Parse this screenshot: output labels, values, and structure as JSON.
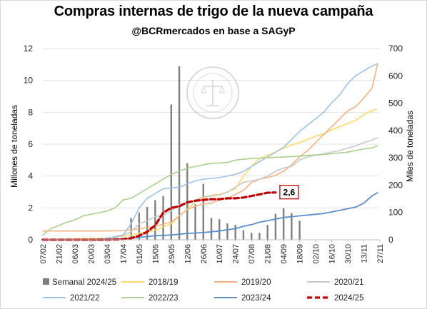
{
  "chart_data": {
    "type": "line",
    "title": "Compras internas de trigo de la nueva campaña",
    "subtitle": "@BCRmercados en base a SAGyP",
    "ylabel_left": "Millones de toneladas",
    "ylabel_right": "Miles de toneladas",
    "ylim_left": [
      0,
      12
    ],
    "ylim_right": [
      0,
      700
    ],
    "yticks_left": [
      "0",
      "2",
      "4",
      "6",
      "8",
      "10",
      "12"
    ],
    "yticks_right": [
      "0",
      "100",
      "200",
      "300",
      "400",
      "500",
      "600",
      "700"
    ],
    "x_tick_labels": [
      "07/02",
      "21/02",
      "06/03",
      "20/03",
      "03/04",
      "17/04",
      "01/05",
      "15/05",
      "29/05",
      "12/06",
      "26/06",
      "10/07",
      "24/07",
      "07/08",
      "21/08",
      "04/09",
      "18/09",
      "02/10",
      "16/10",
      "30/10",
      "13/11",
      "27/11"
    ],
    "x_unit": "weeks since 07/02",
    "x_max": 42,
    "grid": "horizontal",
    "legend_position": "bottom",
    "annotation": {
      "text": "2,6",
      "series": "2024/25"
    },
    "bar_series": {
      "name": "Semanal 2024/25",
      "color": "#7f7f7f",
      "axis": "right",
      "x": [
        11,
        12,
        13,
        14,
        15,
        16,
        17,
        18,
        19,
        20,
        21,
        22,
        23,
        24,
        25,
        26,
        27,
        28,
        29,
        30,
        31,
        32
      ],
      "values": [
        80,
        100,
        120,
        145,
        160,
        495,
        635,
        280,
        130,
        205,
        80,
        75,
        60,
        55,
        35,
        25,
        25,
        55,
        95,
        115,
        98,
        70
      ]
    },
    "series": [
      {
        "name": "2018/19",
        "color": "#ffd966",
        "width": 1.6,
        "dash": "",
        "points": [
          [
            0,
            0
          ],
          [
            4,
            0.05
          ],
          [
            8,
            0.1
          ],
          [
            11,
            0.3
          ],
          [
            14,
            0.6
          ],
          [
            16,
            1.0
          ],
          [
            17,
            1.5
          ],
          [
            18,
            1.9
          ],
          [
            19,
            2.4
          ],
          [
            20,
            2.6
          ],
          [
            21,
            2.8
          ],
          [
            22,
            2.85
          ],
          [
            23,
            3.0
          ],
          [
            24,
            3.2
          ],
          [
            25,
            4.0
          ],
          [
            26,
            4.6
          ],
          [
            27,
            5.1
          ],
          [
            28,
            5.3
          ],
          [
            29,
            5.5
          ],
          [
            30,
            5.75
          ],
          [
            31,
            5.95
          ],
          [
            32,
            6.1
          ],
          [
            33,
            6.3
          ],
          [
            34,
            6.5
          ],
          [
            35,
            6.65
          ],
          [
            36,
            6.9
          ],
          [
            37,
            7.1
          ],
          [
            38,
            7.3
          ],
          [
            39,
            7.5
          ],
          [
            40,
            7.85
          ],
          [
            41,
            8.1
          ],
          [
            41.6,
            8.2
          ]
        ]
      },
      {
        "name": "2019/20",
        "color": "#f4b183",
        "width": 1.6,
        "dash": "",
        "points": [
          [
            0,
            0.55
          ],
          [
            4,
            0.55
          ],
          [
            8,
            0.55
          ],
          [
            10,
            0.58
          ],
          [
            12,
            0.7
          ],
          [
            14,
            0.85
          ],
          [
            16,
            1.1
          ],
          [
            17,
            1.5
          ],
          [
            18,
            1.9
          ],
          [
            19,
            2.1
          ],
          [
            20,
            2.25
          ],
          [
            21,
            2.3
          ],
          [
            22,
            2.5
          ],
          [
            23,
            2.6
          ],
          [
            24,
            2.85
          ],
          [
            25,
            3.1
          ],
          [
            26,
            3.6
          ],
          [
            27,
            3.8
          ],
          [
            28,
            3.9
          ],
          [
            29,
            4.05
          ],
          [
            30,
            4.3
          ],
          [
            31,
            4.7
          ],
          [
            32,
            5.2
          ],
          [
            33,
            5.6
          ],
          [
            34,
            6.1
          ],
          [
            35,
            6.6
          ],
          [
            36,
            7.1
          ],
          [
            37,
            7.6
          ],
          [
            38,
            8.1
          ],
          [
            39,
            8.35
          ],
          [
            40,
            8.9
          ],
          [
            41,
            9.5
          ],
          [
            41.7,
            11.0
          ]
        ]
      },
      {
        "name": "2020/21",
        "color": "#c9c9c9",
        "width": 1.6,
        "dash": "",
        "points": [
          [
            0,
            0
          ],
          [
            4,
            0
          ],
          [
            8,
            0
          ],
          [
            9,
            0.1
          ],
          [
            11,
            0.5
          ],
          [
            12,
            1.0
          ],
          [
            13,
            1.2
          ],
          [
            14,
            1.45
          ],
          [
            15,
            1.55
          ],
          [
            16,
            1.8
          ],
          [
            17,
            2.2
          ],
          [
            18,
            2.3
          ],
          [
            19,
            2.5
          ],
          [
            20,
            2.7
          ],
          [
            21,
            2.75
          ],
          [
            22,
            2.8
          ],
          [
            23,
            3.0
          ],
          [
            24,
            3.3
          ],
          [
            25,
            3.6
          ],
          [
            26,
            3.7
          ],
          [
            27,
            3.8
          ],
          [
            28,
            4.0
          ],
          [
            29,
            4.3
          ],
          [
            30,
            4.5
          ],
          [
            31,
            4.6
          ],
          [
            32,
            5.0
          ],
          [
            33,
            5.2
          ],
          [
            34,
            5.3
          ],
          [
            35,
            5.4
          ],
          [
            36,
            5.5
          ],
          [
            37,
            5.6
          ],
          [
            38,
            5.75
          ],
          [
            39,
            5.9
          ],
          [
            40,
            6.1
          ],
          [
            41,
            6.25
          ],
          [
            41.7,
            6.4
          ]
        ]
      },
      {
        "name": "2021/22",
        "color": "#9dc3e6",
        "width": 1.6,
        "dash": "",
        "points": [
          [
            0,
            0
          ],
          [
            4,
            0
          ],
          [
            6,
            0
          ],
          [
            8,
            0.1
          ],
          [
            10,
            0.3
          ],
          [
            11,
            1.0
          ],
          [
            12,
            2.0
          ],
          [
            13,
            2.6
          ],
          [
            14,
            2.9
          ],
          [
            15,
            3.2
          ],
          [
            16,
            3.25
          ],
          [
            17,
            3.3
          ],
          [
            18,
            3.5
          ],
          [
            19,
            3.7
          ],
          [
            20,
            3.8
          ],
          [
            21,
            3.85
          ],
          [
            22,
            3.9
          ],
          [
            23,
            4.0
          ],
          [
            24,
            4.1
          ],
          [
            25,
            4.3
          ],
          [
            26,
            4.6
          ],
          [
            27,
            4.9
          ],
          [
            28,
            5.2
          ],
          [
            29,
            5.5
          ],
          [
            30,
            5.8
          ],
          [
            31,
            6.3
          ],
          [
            32,
            6.8
          ],
          [
            33,
            7.2
          ],
          [
            34,
            7.6
          ],
          [
            35,
            8.0
          ],
          [
            36,
            8.6
          ],
          [
            37,
            9.1
          ],
          [
            38,
            9.8
          ],
          [
            39,
            10.3
          ],
          [
            40,
            10.6
          ],
          [
            41,
            10.9
          ],
          [
            41.7,
            11.05
          ]
        ]
      },
      {
        "name": "2022/23",
        "color": "#a9d18e",
        "width": 1.6,
        "dash": "",
        "points": [
          [
            0,
            0.3
          ],
          [
            1,
            0.7
          ],
          [
            2,
            0.9
          ],
          [
            3,
            1.1
          ],
          [
            4,
            1.25
          ],
          [
            5,
            1.5
          ],
          [
            6,
            1.6
          ],
          [
            7,
            1.7
          ],
          [
            8,
            1.8
          ],
          [
            9,
            2.0
          ],
          [
            10,
            2.5
          ],
          [
            11,
            2.6
          ],
          [
            12,
            2.9
          ],
          [
            13,
            3.2
          ],
          [
            14,
            3.5
          ],
          [
            15,
            3.8
          ],
          [
            16,
            4.1
          ],
          [
            17,
            4.3
          ],
          [
            18,
            4.5
          ],
          [
            19,
            4.6
          ],
          [
            20,
            4.7
          ],
          [
            21,
            4.8
          ],
          [
            22,
            4.82
          ],
          [
            23,
            4.85
          ],
          [
            24,
            5.0
          ],
          [
            25,
            5.05
          ],
          [
            26,
            5.1
          ],
          [
            27,
            5.12
          ],
          [
            28,
            5.15
          ],
          [
            29,
            5.17
          ],
          [
            30,
            5.2
          ],
          [
            31,
            5.22
          ],
          [
            32,
            5.25
          ],
          [
            33,
            5.3
          ],
          [
            34,
            5.32
          ],
          [
            35,
            5.35
          ],
          [
            36,
            5.4
          ],
          [
            37,
            5.45
          ],
          [
            38,
            5.5
          ],
          [
            39,
            5.6
          ],
          [
            40,
            5.7
          ],
          [
            41,
            5.75
          ],
          [
            41.7,
            5.9
          ]
        ]
      },
      {
        "name": "2023/24",
        "color": "#5b8ec9",
        "width": 1.8,
        "dash": "",
        "points": [
          [
            0,
            0
          ],
          [
            4,
            0
          ],
          [
            8,
            0
          ],
          [
            10,
            0.05
          ],
          [
            12,
            0.15
          ],
          [
            14,
            0.25
          ],
          [
            16,
            0.3
          ],
          [
            18,
            0.4
          ],
          [
            20,
            0.45
          ],
          [
            22,
            0.55
          ],
          [
            24,
            0.7
          ],
          [
            25,
            0.85
          ],
          [
            26,
            0.95
          ],
          [
            27,
            1.1
          ],
          [
            28,
            1.2
          ],
          [
            29,
            1.3
          ],
          [
            30,
            1.4
          ],
          [
            31,
            1.45
          ],
          [
            32,
            1.5
          ],
          [
            33,
            1.55
          ],
          [
            34,
            1.6
          ],
          [
            35,
            1.65
          ],
          [
            36,
            1.75
          ],
          [
            37,
            1.85
          ],
          [
            38,
            1.95
          ],
          [
            39,
            2.05
          ],
          [
            40,
            2.3
          ],
          [
            41,
            2.75
          ],
          [
            41.7,
            2.95
          ]
        ]
      },
      {
        "name": "2024/25",
        "color": "#c00000",
        "width": 3.2,
        "dash": "7,4",
        "points": [
          [
            0,
            0
          ],
          [
            4,
            0
          ],
          [
            8,
            0
          ],
          [
            9.5,
            0.02
          ],
          [
            11,
            0.1
          ],
          [
            12,
            0.25
          ],
          [
            13,
            0.5
          ],
          [
            14,
            0.9
          ],
          [
            15,
            1.7
          ],
          [
            16,
            2.0
          ],
          [
            17,
            2.1
          ],
          [
            18,
            2.35
          ],
          [
            19,
            2.45
          ],
          [
            20,
            2.5
          ],
          [
            21,
            2.55
          ],
          [
            22,
            2.55
          ],
          [
            23,
            2.6
          ],
          [
            24,
            2.6
          ],
          [
            25,
            2.65
          ],
          [
            26,
            2.75
          ],
          [
            27,
            2.85
          ],
          [
            28,
            2.95
          ],
          [
            29,
            2.97
          ]
        ]
      }
    ]
  }
}
